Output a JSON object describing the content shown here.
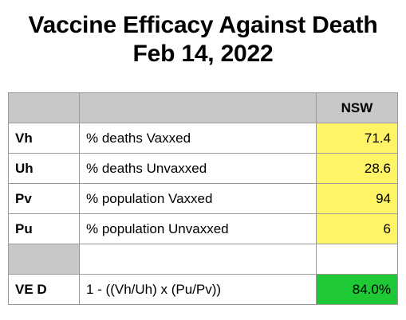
{
  "title": {
    "line1": "Vaccine Efficacy Against Death",
    "line2": "Feb 14, 2022"
  },
  "table": {
    "header": {
      "code": "",
      "label": "",
      "region": "NSW"
    },
    "rows": [
      {
        "code": "Vh",
        "label": "% deaths Vaxxed",
        "value": "71.4"
      },
      {
        "code": "Uh",
        "label": "% deaths Unvaxxed",
        "value": "28.6"
      },
      {
        "code": "Pv",
        "label": "% population Vaxxed",
        "value": "94"
      },
      {
        "code": "Pu",
        "label": "% population Unvaxxed",
        "value": "6"
      },
      {
        "code": "",
        "label": "",
        "value": ""
      },
      {
        "code": "VE D",
        "label": "1 - ((Vh/Uh) x (Pu/Pv))",
        "value": "84.0%"
      }
    ]
  },
  "colors": {
    "header_fill": "#c8c8c8",
    "input_fill": "#fff466",
    "result_fill": "#1fc935",
    "border": "#9a9a9a"
  }
}
